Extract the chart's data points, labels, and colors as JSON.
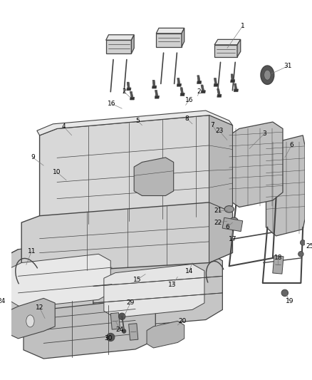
{
  "bg": "#ffffff",
  "lc": "#444444",
  "fc_light": "#e8e8e8",
  "fc_mid": "#d0d0d0",
  "fc_dark": "#b8b8b8",
  "fc_frame": "#c0c0c0",
  "label_fs": 6.5,
  "fig_w": 4.38,
  "fig_h": 5.33,
  "dpi": 100
}
